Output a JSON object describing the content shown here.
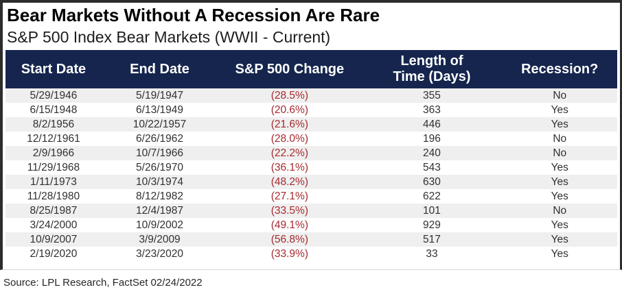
{
  "chart_data": {
    "type": "table",
    "title": "Bear Markets Without A Recession Are Rare",
    "subtitle": "S&P 500 Index Bear Markets (WWII - Current)",
    "columns": [
      "Start Date",
      "End Date",
      "S&P 500 Change",
      "Length of Time (Days)",
      "Recession?"
    ],
    "column_keys": [
      "start-date",
      "end-date",
      "sp500-change",
      "length-days",
      "recession"
    ],
    "rows": [
      [
        "5/29/1946",
        "5/19/1947",
        "(28.5%)",
        "355",
        "No"
      ],
      [
        "6/15/1948",
        "6/13/1949",
        "(20.6%)",
        "363",
        "Yes"
      ],
      [
        "8/2/1956",
        "10/22/1957",
        "(21.6%)",
        "446",
        "Yes"
      ],
      [
        "12/12/1961",
        "6/26/1962",
        "(28.0%)",
        "196",
        "No"
      ],
      [
        "2/9/1966",
        "10/7/1966",
        "(22.2%)",
        "240",
        "No"
      ],
      [
        "11/29/1968",
        "5/26/1970",
        "(36.1%)",
        "543",
        "Yes"
      ],
      [
        "1/11/1973",
        "10/3/1974",
        "(48.2%)",
        "630",
        "Yes"
      ],
      [
        "11/28/1980",
        "8/12/1982",
        "(27.1%)",
        "622",
        "Yes"
      ],
      [
        "8/25/1987",
        "12/4/1987",
        "(33.5%)",
        "101",
        "No"
      ],
      [
        "3/24/2000",
        "10/9/2002",
        "(49.1%)",
        "929",
        "Yes"
      ],
      [
        "10/9/2007",
        "3/9/2009",
        "(56.8%)",
        "517",
        "Yes"
      ],
      [
        "2/19/2020",
        "3/23/2020",
        "(33.9%)",
        "33",
        "Yes"
      ]
    ],
    "source": "Source: LPL Research, FactSet 02/24/2022",
    "layout": {
      "negative_value_column_index": 2,
      "stripe_first_row": "gray"
    }
  },
  "colors": {
    "header_navy": "#15254d",
    "negative_red": "#a6292f",
    "stripe_gray": "#efefef",
    "frame_border": "#2d2d2d"
  }
}
